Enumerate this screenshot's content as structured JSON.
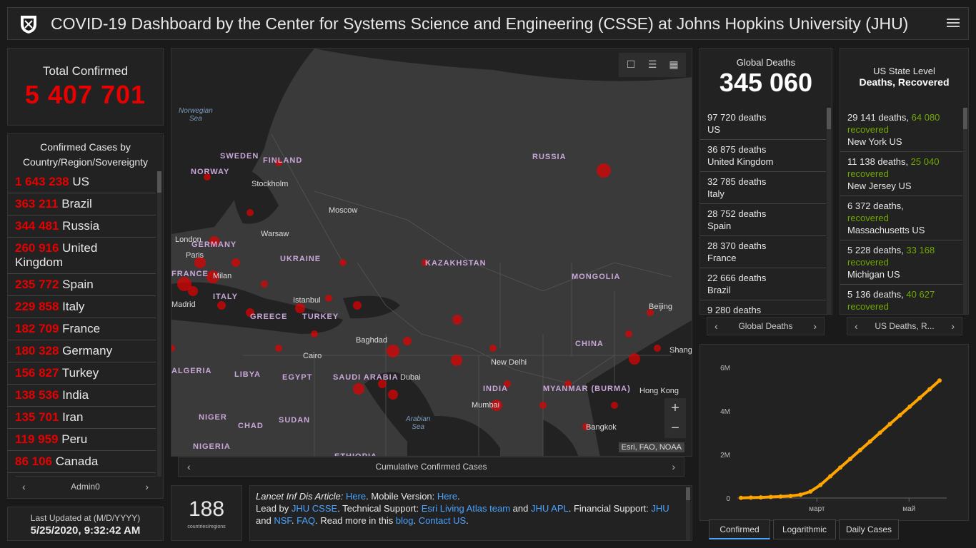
{
  "header": {
    "title": "COVID-19 Dashboard by the Center for Systems Science and Engineering (CSSE) at Johns Hopkins University (JHU)"
  },
  "total": {
    "label": "Total Confirmed",
    "value": "5 407 701"
  },
  "country": {
    "header": "Confirmed Cases by Country/Region/Sovereignty",
    "rows": [
      {
        "n": "1 643 238",
        "name": "US"
      },
      {
        "n": "363 211",
        "name": "Brazil"
      },
      {
        "n": "344 481",
        "name": "Russia"
      },
      {
        "n": "260 916",
        "name": "United Kingdom"
      },
      {
        "n": "235 772",
        "name": "Spain"
      },
      {
        "n": "229 858",
        "name": "Italy"
      },
      {
        "n": "182 709",
        "name": "France"
      },
      {
        "n": "180 328",
        "name": "Germany"
      },
      {
        "n": "156 827",
        "name": "Turkey"
      },
      {
        "n": "138 536",
        "name": "India"
      },
      {
        "n": "135 701",
        "name": "Iran"
      },
      {
        "n": "119 959",
        "name": "Peru"
      },
      {
        "n": "86 106",
        "name": "Canada"
      }
    ],
    "pager": "Admin0"
  },
  "updated": {
    "label": "Last Updated at (M/D/YYYY)",
    "value": "5/25/2020, 9:32:42 AM"
  },
  "map": {
    "attribution": "Esri, FAO, NOAA",
    "nav": "Cumulative Confirmed Cases",
    "countries": [
      "SWEDEN",
      "FINLAND",
      "NORWAY",
      "RUSSIA",
      "GERMANY",
      "UKRAINE",
      "KAZAKHSTAN",
      "MONGOLIA",
      "FRANCE",
      "ITALY",
      "GREECE",
      "TURKEY",
      "CHINA",
      "ALGERIA",
      "LIBYA",
      "EGYPT",
      "SAUDI ARABIA",
      "INDIA",
      "MYANMAR (BURMA)",
      "NIGER",
      "CHAD",
      "SUDAN",
      "NIGERIA",
      "ETHIOPIA"
    ],
    "cities": [
      "Stockholm",
      "Moscow",
      "London",
      "Warsaw",
      "Paris",
      "Milan",
      "Madrid",
      "Istanbul",
      "Baghdad",
      "Cairo",
      "Dubai",
      "New Delhi",
      "Mumbai",
      "Beijing",
      "Shanghai",
      "Hong Kong",
      "Bangkok"
    ],
    "seas": [
      "Norwegian Sea",
      "Arabian Sea"
    ]
  },
  "count": {
    "value": "188",
    "caption": "countries/regions"
  },
  "info": {
    "article_label": "Lancet Inf Dis Article:",
    "here1": "Here",
    "mobile": ". Mobile Version:",
    "here2": "Here",
    "dot": ".",
    "lead": "Lead by",
    "jhu_csse": "JHU CSSE",
    "tech": ". Technical Support:",
    "esri": "Esri Living Atlas team",
    "and1": "and",
    "jhu_apl": "JHU APL",
    "fin": ". Financial Support:",
    "jhu": "JHU",
    "and2": "and",
    "nsf": "NSF",
    "faq": "FAQ",
    "readmore": ". Read more in this",
    "blog": "blog",
    "contact": "Contact US"
  },
  "deaths": {
    "label": "Global Deaths",
    "value": "345 060",
    "rows": [
      {
        "n": "97 720 deaths",
        "name": "US"
      },
      {
        "n": "36 875 deaths",
        "name": "United Kingdom"
      },
      {
        "n": "32 785 deaths",
        "name": "Italy"
      },
      {
        "n": "28 752 deaths",
        "name": "Spain"
      },
      {
        "n": "28 370 deaths",
        "name": "France"
      },
      {
        "n": "22 666 deaths",
        "name": "Brazil"
      },
      {
        "n": "9 280 deaths",
        "name": ""
      }
    ],
    "pager": "Global Deaths"
  },
  "us": {
    "label": "US State Level",
    "label2": "Deaths, Recovered",
    "rows": [
      {
        "d": "29 141 deaths,",
        "r": "64 080",
        "rl": "recovered",
        "name": "New York US"
      },
      {
        "d": "11 138 deaths,",
        "r": "25 040",
        "rl": "recovered",
        "name": "New Jersey US"
      },
      {
        "d": "6 372 deaths,",
        "r": "",
        "rl": "recovered",
        "name": "Massachusetts US"
      },
      {
        "d": "5 228 deaths,",
        "r": "33 168",
        "rl": "recovered",
        "name": "Michigan US"
      },
      {
        "d": "5 136 deaths,",
        "r": "40 627",
        "rl": "recovered",
        "name": "Pennsylvania US"
      }
    ],
    "pager": "US Deaths, R..."
  },
  "chart_data": {
    "type": "line",
    "ylabels": [
      "0",
      "2M",
      "4M",
      "6M"
    ],
    "xlabels": [
      "март",
      "май"
    ],
    "ylim": [
      0,
      6000000
    ],
    "series": [
      {
        "values": [
          0.01,
          0.02,
          0.03,
          0.05,
          0.07,
          0.1,
          0.15,
          0.3,
          0.6,
          1.0,
          1.4,
          1.8,
          2.2,
          2.6,
          3.0,
          3.4,
          3.8,
          4.2,
          4.6,
          5.0,
          5.4
        ]
      }
    ],
    "color": "#ffa500"
  },
  "tabs": [
    "Confirmed",
    "Logarithmic",
    "Daily Cases"
  ]
}
